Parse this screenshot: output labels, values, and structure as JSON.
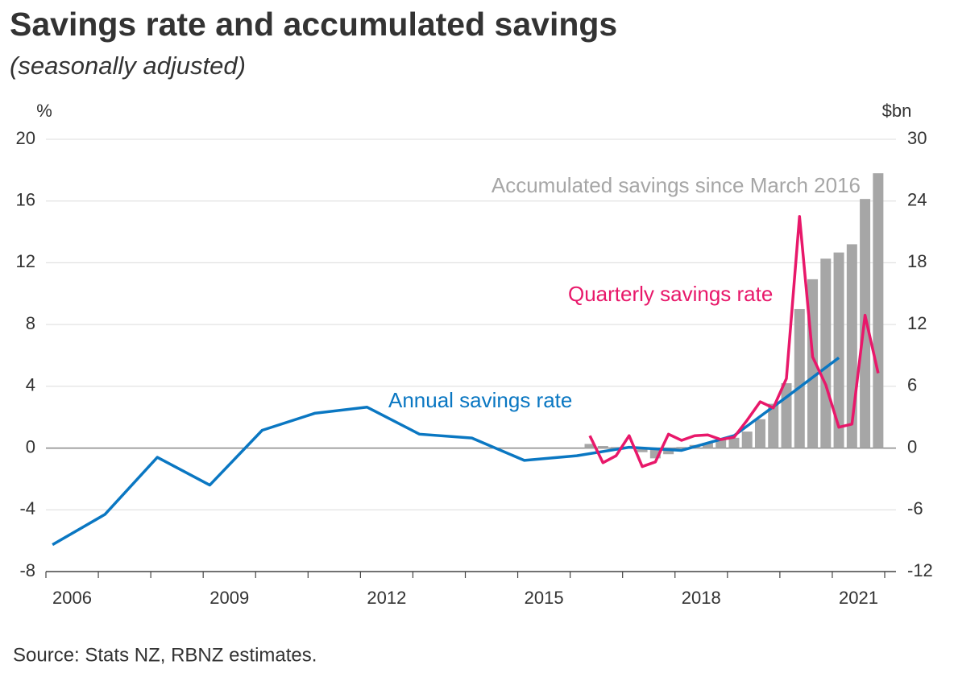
{
  "chart_data": {
    "type": "combo",
    "title": "Savings rate and accumulated savings",
    "subtitle": "(seasonally adjusted)",
    "y_label": "%",
    "y2_label": "$bn",
    "source": "Source: Stats NZ, RBNZ estimates.",
    "xlim": [
      2006,
      2022
    ],
    "xticks": [
      {
        "value": 2006.5,
        "label": "2006"
      },
      {
        "value": 2009.5,
        "label": "2009"
      },
      {
        "value": 2012.5,
        "label": "2012"
      },
      {
        "value": 2015.5,
        "label": "2015"
      },
      {
        "value": 2018.5,
        "label": "2018"
      },
      {
        "value": 2021.5,
        "label": "2021"
      }
    ],
    "ylim": [
      -8,
      20
    ],
    "yticks": [
      -8,
      -4,
      0,
      4,
      8,
      12,
      16,
      20
    ],
    "y2lim": [
      -12,
      30
    ],
    "y2ticks": [
      -12,
      -6,
      0,
      6,
      12,
      18,
      24,
      30
    ],
    "grid": true,
    "series": [
      {
        "name": "Accumulated savings since March 2016",
        "type": "bar",
        "axis": "y2",
        "color": "#a6a6a6",
        "x": [
          2016.375,
          2016.625,
          2016.875,
          2017.125,
          2017.375,
          2017.625,
          2017.875,
          2018.125,
          2018.375,
          2018.625,
          2018.875,
          2019.125,
          2019.375,
          2019.625,
          2019.875,
          2020.125,
          2020.375,
          2020.625,
          2020.875,
          2021.125,
          2021.375,
          2021.625,
          2021.875
        ],
        "values": [
          0.4,
          0.2,
          0.1,
          0.1,
          -0.4,
          -1.0,
          -0.6,
          0.1,
          0.3,
          0.5,
          0.8,
          1.0,
          1.6,
          2.8,
          4.3,
          6.3,
          13.5,
          16.4,
          18.4,
          19.0,
          19.8,
          24.2,
          26.7
        ]
      },
      {
        "name": "Annual savings rate",
        "type": "line",
        "color": "#0a77c2",
        "x": [
          2006.125,
          2007.125,
          2008.125,
          2009.125,
          2010.125,
          2011.125,
          2012.125,
          2013.125,
          2014.125,
          2015.125,
          2016.125,
          2017.125,
          2018.125,
          2019.125,
          2020.125,
          2021.125
        ],
        "values": [
          -6.26,
          -4.3,
          -0.6,
          -2.4,
          1.15,
          2.25,
          2.65,
          0.9,
          0.65,
          -0.8,
          -0.5,
          0.05,
          -0.15,
          0.8,
          3.3,
          5.85
        ]
      },
      {
        "name": "Quarterly savings rate",
        "type": "line",
        "color": "#e8186a",
        "x": [
          2016.375,
          2016.625,
          2016.875,
          2017.125,
          2017.375,
          2017.625,
          2017.875,
          2018.125,
          2018.375,
          2018.625,
          2018.875,
          2019.125,
          2019.375,
          2019.625,
          2019.875,
          2020.125,
          2020.375,
          2020.625,
          2020.875,
          2021.125,
          2021.375,
          2021.625,
          2021.875
        ],
        "values": [
          0.8,
          -0.95,
          -0.5,
          0.8,
          -1.2,
          -0.9,
          0.9,
          0.5,
          0.8,
          0.85,
          0.55,
          0.7,
          1.8,
          3.0,
          2.6,
          4.5,
          15.0,
          5.9,
          4.1,
          1.35,
          1.55,
          8.6,
          4.85
        ]
      }
    ]
  }
}
